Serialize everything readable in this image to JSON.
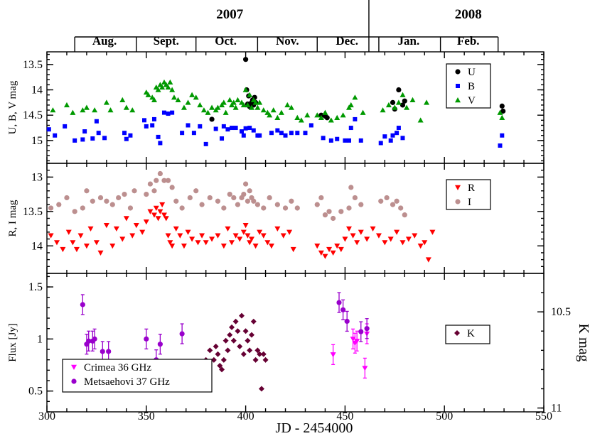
{
  "chart_data": {
    "type": "scatter",
    "xlabel": "JD - 2454000",
    "xlim": [
      300,
      550
    ],
    "xticks": [
      300,
      350,
      400,
      450,
      500,
      550
    ],
    "time_axis": {
      "years": [
        {
          "label": "2007",
          "center": 392
        },
        {
          "label": "2008",
          "center": 512
        }
      ],
      "year_divider": 462,
      "month_boundaries": [
        314,
        345,
        375,
        406,
        436,
        467,
        498,
        527
      ],
      "months": [
        {
          "label": "Aug.",
          "center": 329
        },
        {
          "label": "Sept.",
          "center": 360
        },
        {
          "label": "Oct.",
          "center": 390
        },
        {
          "label": "Nov.",
          "center": 421
        },
        {
          "label": "Dec.",
          "center": 451
        },
        {
          "label": "Jan.",
          "center": 482
        },
        {
          "label": "Feb.",
          "center": 512
        }
      ]
    },
    "panels": [
      {
        "id": "ubv",
        "ylabel": "U, B, V mag",
        "ylim": [
          15.45,
          13.25
        ],
        "yticks": [
          {
            "v": 13.5,
            "t": "13.5"
          },
          {
            "v": 14,
            "t": "14"
          },
          {
            "v": 14.5,
            "t": "14.5"
          },
          {
            "v": 15,
            "t": "15"
          }
        ],
        "series": [
          {
            "name": "U",
            "label": "U",
            "color": "#000000",
            "marker": "circle",
            "x": [
              383,
              400,
              400.5,
              401,
              401.5,
              402,
              403,
              403.5,
              404,
              404.5,
              405,
              438,
              440,
              441,
              474,
              475,
              477,
              479,
              480,
              529,
              529.5
            ],
            "y": [
              14.58,
              13.4,
              14.0,
              14.28,
              14.12,
              14.33,
              14.25,
              14.2,
              14.3,
              14.15,
              14.25,
              14.5,
              14.52,
              14.55,
              14.25,
              14.38,
              14.0,
              14.3,
              14.22,
              14.32,
              14.42
            ]
          },
          {
            "name": "B",
            "label": "B",
            "color": "#0000ff",
            "marker": "square",
            "x": [
              301,
              304,
              309,
              314,
              318,
              319,
              323,
              325,
              326,
              329,
              339,
              340,
              342,
              349,
              350,
              353,
              354,
              356,
              357,
              359,
              361,
              363,
              368,
              371,
              374,
              377,
              380,
              385,
              388,
              389,
              391,
              393,
              395,
              398,
              399,
              400,
              402,
              404,
              406,
              407,
              413,
              416,
              418,
              420,
              423,
              426,
              430,
              433,
              439,
              443,
              446,
              450,
              452,
              453,
              455,
              458,
              468,
              470,
              473,
              474,
              476,
              477,
              479,
              528,
              529
            ],
            "y": [
              14.78,
              14.9,
              14.72,
              15.0,
              14.98,
              14.82,
              14.96,
              14.62,
              14.85,
              14.95,
              14.85,
              14.97,
              14.9,
              14.6,
              14.72,
              14.7,
              14.58,
              14.93,
              15.05,
              14.45,
              14.47,
              14.45,
              14.85,
              14.7,
              14.85,
              14.72,
              15.07,
              14.77,
              14.96,
              14.72,
              14.78,
              14.75,
              14.75,
              14.82,
              14.9,
              14.76,
              14.75,
              14.8,
              14.9,
              14.9,
              14.85,
              14.8,
              14.85,
              14.9,
              14.85,
              14.85,
              14.85,
              14.7,
              14.95,
              15.0,
              14.97,
              15.0,
              15.0,
              14.75,
              14.58,
              15.0,
              15.05,
              14.92,
              15.0,
              14.9,
              14.85,
              14.75,
              14.95,
              15.1,
              14.9
            ]
          },
          {
            "name": "V",
            "label": "V",
            "color": "#009900",
            "marker": "triangle-up",
            "x": [
              303,
              310,
              313,
              318,
              320,
              324,
              330,
              332,
              338,
              340,
              343,
              350,
              351,
              353,
              354,
              355,
              356,
              357,
              358,
              359,
              360,
              361,
              362,
              363,
              364,
              366,
              369,
              371,
              373,
              375,
              377,
              379,
              381,
              383,
              385,
              386,
              388,
              389,
              390,
              392,
              393,
              394,
              395,
              396,
              398,
              399,
              400,
              401,
              402,
              403,
              404,
              405,
              406,
              407,
              409,
              411,
              412,
              414,
              416,
              418,
              421,
              423,
              426,
              428,
              431,
              436,
              438,
              440,
              443,
              446,
              449,
              452,
              453,
              455,
              459,
              469,
              472,
              475,
              477,
              479,
              481,
              484,
              488,
              491,
              528,
              529
            ],
            "y": [
              14.4,
              14.3,
              14.45,
              14.4,
              14.35,
              14.4,
              14.25,
              14.4,
              14.2,
              14.35,
              14.4,
              14.05,
              14.1,
              14.15,
              14.2,
              13.95,
              14.0,
              13.9,
              13.95,
              13.85,
              13.9,
              13.95,
              13.85,
              14.0,
              14.15,
              14.2,
              14.35,
              14.25,
              14.1,
              14.15,
              14.3,
              14.4,
              14.45,
              14.35,
              14.4,
              14.35,
              14.3,
              14.25,
              14.45,
              14.2,
              14.3,
              14.25,
              14.35,
              14.2,
              14.25,
              14.3,
              14.0,
              14.3,
              14.1,
              14.35,
              14.2,
              14.25,
              14.35,
              14.25,
              14.4,
              14.45,
              14.5,
              14.4,
              14.55,
              14.45,
              14.3,
              14.35,
              14.55,
              14.6,
              14.5,
              14.5,
              14.55,
              14.45,
              14.6,
              14.55,
              14.5,
              14.35,
              14.3,
              14.15,
              14.45,
              14.4,
              14.3,
              14.35,
              14.25,
              14.1,
              14.35,
              14.2,
              14.6,
              14.25,
              14.45,
              14.55
            ]
          }
        ]
      },
      {
        "id": "ri",
        "ylabel": "R, I mag",
        "ylim": [
          14.4,
          12.8
        ],
        "yticks": [
          {
            "v": 13,
            "t": "13"
          },
          {
            "v": 13.5,
            "t": "13.5"
          },
          {
            "v": 14,
            "t": "14"
          }
        ],
        "series": [
          {
            "name": "R",
            "label": "R",
            "color": "#ff0000",
            "marker": "triangle-down",
            "x": [
              302,
              305,
              308,
              311,
              313,
              315,
              317,
              320,
              322,
              325,
              327,
              330,
              333,
              335,
              338,
              340,
              343,
              345,
              348,
              350,
              352,
              354,
              355,
              356,
              357,
              358,
              359,
              360,
              361,
              362,
              363,
              365,
              367,
              369,
              371,
              373,
              376,
              378,
              380,
              383,
              386,
              389,
              391,
              393,
              395,
              397,
              399,
              400,
              401,
              402,
              403,
              405,
              407,
              409,
              411,
              413,
              416,
              419,
              422,
              424,
              436,
              438,
              440,
              442,
              444,
              446,
              448,
              450,
              452,
              454,
              456,
              458,
              461,
              464,
              467,
              470,
              473,
              476,
              479,
              482,
              485,
              488,
              490,
              492,
              494
            ],
            "y": [
              13.85,
              13.95,
              14.05,
              13.8,
              13.95,
              14.05,
              13.85,
              14.0,
              13.75,
              13.95,
              14.1,
              13.7,
              14.0,
              13.75,
              13.9,
              13.6,
              13.85,
              13.7,
              13.8,
              13.65,
              13.5,
              13.55,
              13.45,
              13.6,
              13.5,
              13.4,
              13.55,
              13.6,
              13.85,
              13.95,
              14.0,
              13.75,
              13.85,
              14.0,
              13.8,
              13.9,
              13.95,
              13.85,
              13.95,
              13.9,
              13.85,
              14.0,
              13.75,
              13.95,
              13.85,
              13.9,
              13.8,
              13.7,
              13.85,
              13.95,
              13.9,
              14.0,
              13.8,
              13.85,
              13.95,
              14.0,
              13.75,
              13.85,
              13.8,
              14.05,
              14.0,
              14.1,
              14.15,
              14.05,
              14.1,
              14.0,
              14.05,
              13.9,
              13.75,
              13.85,
              13.95,
              13.8,
              13.9,
              13.75,
              13.85,
              13.95,
              13.9,
              13.8,
              13.95,
              13.9,
              13.85,
              14.0,
              13.95,
              14.2,
              13.8
            ]
          },
          {
            "name": "I",
            "label": "I",
            "color": "#bc8f8f",
            "marker": "circle",
            "x": [
              302,
              306,
              310,
              314,
              318,
              320,
              323,
              327,
              330,
              333,
              336,
              339,
              342,
              344,
              350,
              352,
              354,
              355,
              357,
              359,
              361,
              363,
              365,
              368,
              372,
              375,
              378,
              382,
              386,
              389,
              392,
              394,
              396,
              398,
              399,
              400,
              401,
              402,
              403,
              404,
              406,
              409,
              412,
              416,
              420,
              423,
              426,
              436,
              438,
              440,
              442,
              444,
              448,
              452,
              453,
              455,
              458,
              468,
              471,
              474,
              476,
              478,
              480
            ],
            "y": [
              13.45,
              13.4,
              13.3,
              13.5,
              13.45,
              13.2,
              13.35,
              13.3,
              13.35,
              13.4,
              13.3,
              13.25,
              13.45,
              13.2,
              13.25,
              13.1,
              13.2,
              13.05,
              12.95,
              13.05,
              13.05,
              13.15,
              13.35,
              13.45,
              13.3,
              13.2,
              13.4,
              13.3,
              13.35,
              13.45,
              13.25,
              13.3,
              13.4,
              13.3,
              13.25,
              13.1,
              13.35,
              13.2,
              13.3,
              13.35,
              13.4,
              13.45,
              13.3,
              13.4,
              13.45,
              13.35,
              13.45,
              13.4,
              13.3,
              13.55,
              13.5,
              13.6,
              13.5,
              13.45,
              13.15,
              13.3,
              13.4,
              13.35,
              13.3,
              13.4,
              13.35,
              13.45,
              13.55
            ]
          }
        ]
      },
      {
        "id": "flux",
        "ylabel": "Flux [Jy]",
        "ylabel_right": "K mag",
        "ylim": [
          0.3,
          1.63
        ],
        "yticks": [
          {
            "v": 0.5,
            "t": "0.5"
          },
          {
            "v": 1,
            "t": "1"
          },
          {
            "v": 1.5,
            "t": "1.5"
          }
        ],
        "yticks_right": [
          {
            "v": 10.5,
            "t": "10.5"
          },
          {
            "v": 11,
            "t": "11"
          }
        ],
        "kmag_range": [
          10.3,
          11.02
        ],
        "series": [
          {
            "name": "K",
            "label": "K",
            "color": "#660033",
            "marker": "diamond",
            "axis": "right",
            "x": [
              380,
              382,
              384,
              385,
              386,
              387,
              388,
              389,
              390,
              391,
              392,
              393,
              394,
              395,
              396,
              397,
              398,
              399,
              400,
              401,
              402,
              403,
              404,
              405,
              406,
              407,
              408,
              409,
              410
            ],
            "y": [
              10.75,
              10.7,
              10.75,
              10.68,
              10.72,
              10.78,
              10.8,
              10.75,
              10.65,
              10.7,
              10.62,
              10.58,
              10.65,
              10.55,
              10.6,
              10.68,
              10.52,
              10.72,
              10.6,
              10.65,
              10.7,
              10.62,
              10.55,
              10.75,
              10.7,
              10.72,
              10.9,
              10.72,
              10.75
            ]
          },
          {
            "name": "Crimea 36 GHz",
            "label": "Crimea 36 GHz",
            "color": "#ff00ff",
            "marker": "triangle-down",
            "axis": "left",
            "x": [
              444,
              454,
              455,
              456,
              460,
              461
            ],
            "y": [
              0.85,
              1.0,
              0.96,
              0.98,
              0.72,
              1.05
            ]
          },
          {
            "name": "Metsaehovi 37 GHz",
            "label": "Metsaehovi 37 GHz",
            "color": "#9900cc",
            "marker": "circle",
            "axis": "left",
            "x": [
              318,
              320,
              321,
              323,
              324,
              328,
              331,
              350,
              355,
              357,
              368,
              447,
              449,
              451,
              458,
              461
            ],
            "y": [
              1.33,
              0.95,
              0.98,
              0.98,
              1.0,
              0.88,
              0.88,
              1.0,
              0.8,
              0.95,
              1.05,
              1.35,
              1.28,
              1.17,
              1.07,
              1.1
            ]
          }
        ]
      }
    ],
    "legends": {
      "ubv": [
        "U",
        "B",
        "V"
      ],
      "ri": [
        "R",
        "I"
      ],
      "k": [
        "K"
      ],
      "radio": [
        "Crimea 36 GHz",
        "Metsaehovi 37 GHz"
      ]
    }
  }
}
